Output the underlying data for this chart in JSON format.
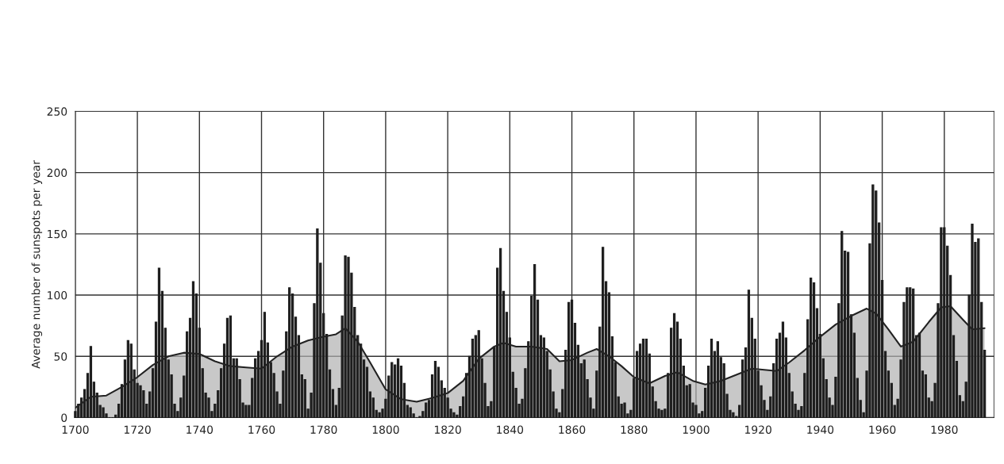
{
  "chart_data": {
    "type": "bar",
    "ylabel": "Average number of sunspots per year",
    "xlim": [
      1700,
      1996
    ],
    "xticks": [
      1700,
      1720,
      1740,
      1760,
      1780,
      1800,
      1820,
      1840,
      1860,
      1880,
      1900,
      1920,
      1940,
      1960,
      1980
    ],
    "ylim": [
      0,
      250
    ],
    "yticks": [
      0,
      50,
      100,
      150,
      200,
      250
    ],
    "grid": true,
    "series": [
      {
        "type": "area",
        "color": "#b0b0b0",
        "x": [
          1700,
          1705,
          1710,
          1715,
          1720,
          1725,
          1730,
          1735,
          1740,
          1745,
          1750,
          1755,
          1760,
          1765,
          1770,
          1775,
          1780,
          1784,
          1787,
          1791,
          1795,
          1800,
          1805,
          1810,
          1815,
          1820,
          1825,
          1830,
          1835,
          1838,
          1842,
          1847,
          1852,
          1856,
          1860,
          1865,
          1868,
          1872,
          1876,
          1880,
          1885,
          1890,
          1894,
          1899,
          1903,
          1908,
          1913,
          1918,
          1922,
          1926,
          1930,
          1935,
          1940,
          1945,
          1950,
          1955,
          1958,
          1962,
          1966,
          1970,
          1975,
          1979,
          1982,
          1986,
          1989,
          1993
        ],
        "values": [
          8,
          17,
          18,
          25,
          33,
          43,
          50,
          53,
          52,
          46,
          42,
          41,
          40,
          50,
          58,
          63,
          66,
          68,
          73,
          62,
          45,
          23,
          15,
          13,
          16,
          20,
          30,
          48,
          58,
          61,
          58,
          58,
          56,
          46,
          47,
          53,
          56,
          50,
          42,
          33,
          28,
          34,
          37,
          30,
          27,
          30,
          35,
          40,
          39,
          38,
          45,
          55,
          66,
          76,
          83,
          89,
          85,
          72,
          58,
          62,
          78,
          90,
          91,
          80,
          72,
          73
        ]
      },
      {
        "color": "#1e1e1e",
        "x": [
          1700,
          1701,
          1702,
          1703,
          1704,
          1705,
          1706,
          1707,
          1708,
          1709,
          1710,
          1711,
          1712,
          1713,
          1714,
          1715,
          1716,
          1717,
          1718,
          1719,
          1720,
          1721,
          1722,
          1723,
          1724,
          1725,
          1726,
          1727,
          1728,
          1729,
          1730,
          1731,
          1732,
          1733,
          1734,
          1735,
          1736,
          1737,
          1738,
          1739,
          1740,
          1741,
          1742,
          1743,
          1744,
          1745,
          1746,
          1747,
          1748,
          1749,
          1750,
          1751,
          1752,
          1753,
          1754,
          1755,
          1756,
          1757,
          1758,
          1759,
          1760,
          1761,
          1762,
          1763,
          1764,
          1765,
          1766,
          1767,
          1768,
          1769,
          1770,
          1771,
          1772,
          1773,
          1774,
          1775,
          1776,
          1777,
          1778,
          1779,
          1780,
          1781,
          1782,
          1783,
          1784,
          1785,
          1786,
          1787,
          1788,
          1789,
          1790,
          1791,
          1792,
          1793,
          1794,
          1795,
          1796,
          1797,
          1798,
          1799,
          1800,
          1801,
          1802,
          1803,
          1804,
          1805,
          1806,
          1807,
          1808,
          1809,
          1810,
          1811,
          1812,
          1813,
          1814,
          1815,
          1816,
          1817,
          1818,
          1819,
          1820,
          1821,
          1822,
          1823,
          1824,
          1825,
          1826,
          1827,
          1828,
          1829,
          1830,
          1831,
          1832,
          1833,
          1834,
          1835,
          1836,
          1837,
          1838,
          1839,
          1840,
          1841,
          1842,
          1843,
          1844,
          1845,
          1846,
          1847,
          1848,
          1849,
          1850,
          1851,
          1852,
          1853,
          1854,
          1855,
          1856,
          1857,
          1858,
          1859,
          1860,
          1861,
          1862,
          1863,
          1864,
          1865,
          1866,
          1867,
          1868,
          1869,
          1870,
          1871,
          1872,
          1873,
          1874,
          1875,
          1876,
          1877,
          1878,
          1879,
          1880,
          1881,
          1882,
          1883,
          1884,
          1885,
          1886,
          1887,
          1888,
          1889,
          1890,
          1891,
          1892,
          1893,
          1894,
          1895,
          1896,
          1897,
          1898,
          1899,
          1900,
          1901,
          1902,
          1903,
          1904,
          1905,
          1906,
          1907,
          1908,
          1909,
          1910,
          1911,
          1912,
          1913,
          1914,
          1915,
          1916,
          1917,
          1918,
          1919,
          1920,
          1921,
          1922,
          1923,
          1924,
          1925,
          1926,
          1927,
          1928,
          1929,
          1930,
          1931,
          1932,
          1933,
          1934,
          1935,
          1936,
          1937,
          1938,
          1939,
          1940,
          1941,
          1942,
          1943,
          1944,
          1945,
          1946,
          1947,
          1948,
          1949,
          1950,
          1951,
          1952,
          1953,
          1954,
          1955,
          1956,
          1957,
          1958,
          1959,
          1960,
          1961,
          1962,
          1963,
          1964,
          1965,
          1966,
          1967,
          1968,
          1969,
          1970,
          1971,
          1972,
          1973,
          1974,
          1975,
          1976,
          1977,
          1978,
          1979,
          1980,
          1981,
          1982,
          1983,
          1984,
          1985,
          1986,
          1987,
          1988,
          1989,
          1990,
          1991,
          1992,
          1993
        ],
        "values": [
          5,
          11,
          16,
          23,
          36,
          58,
          29,
          20,
          10,
          8,
          3,
          0,
          0,
          2,
          11,
          27,
          47,
          63,
          60,
          39,
          28,
          26,
          22,
          11,
          21,
          40,
          78,
          122,
          103,
          73,
          47,
          35,
          11,
          5,
          16,
          34,
          70,
          81,
          111,
          101,
          73,
          40,
          20,
          16,
          5,
          11,
          22,
          40,
          60,
          81,
          83,
          48,
          48,
          31,
          12,
          10,
          10,
          32,
          48,
          54,
          63,
          86,
          61,
          45,
          36,
          21,
          11,
          38,
          70,
          106,
          101,
          82,
          67,
          35,
          31,
          7,
          20,
          93,
          154,
          126,
          85,
          68,
          39,
          23,
          10,
          24,
          83,
          132,
          131,
          118,
          90,
          67,
          60,
          47,
          41,
          21,
          16,
          6,
          4,
          7,
          15,
          34,
          45,
          43,
          48,
          42,
          28,
          10,
          8,
          3,
          0,
          1,
          5,
          12,
          14,
          35,
          46,
          41,
          30,
          24,
          16,
          7,
          4,
          2,
          9,
          17,
          36,
          50,
          64,
          67,
          71,
          48,
          28,
          9,
          13,
          57,
          122,
          138,
          103,
          86,
          65,
          37,
          24,
          11,
          15,
          40,
          62,
          99,
          125,
          96,
          67,
          65,
          54,
          39,
          21,
          7,
          4,
          23,
          55,
          94,
          96,
          77,
          59,
          44,
          47,
          31,
          16,
          7,
          38,
          74,
          139,
          111,
          102,
          66,
          45,
          17,
          11,
          12,
          3,
          6,
          32,
          54,
          60,
          64,
          64,
          52,
          25,
          13,
          7,
          6,
          7,
          36,
          73,
          85,
          78,
          64,
          42,
          26,
          27,
          12,
          10,
          3,
          5,
          24,
          42,
          64,
          54,
          62,
          49,
          44,
          19,
          6,
          4,
          1,
          10,
          47,
          57,
          104,
          81,
          64,
          38,
          26,
          14,
          6,
          17,
          44,
          64,
          69,
          78,
          65,
          36,
          21,
          11,
          6,
          9,
          36,
          80,
          114,
          110,
          89,
          68,
          48,
          31,
          16,
          10,
          33,
          93,
          152,
          136,
          135,
          84,
          69,
          32,
          14,
          4,
          38,
          142,
          190,
          185,
          159,
          112,
          54,
          38,
          28,
          10,
          15,
          47,
          94,
          106,
          106,
          105,
          67,
          69,
          38,
          35,
          16,
          13,
          28,
          93,
          155,
          155,
          140,
          116,
          67,
          46,
          18,
          13,
          29,
          100,
          158,
          143,
          146,
          94,
          55
        ]
      }
    ]
  }
}
